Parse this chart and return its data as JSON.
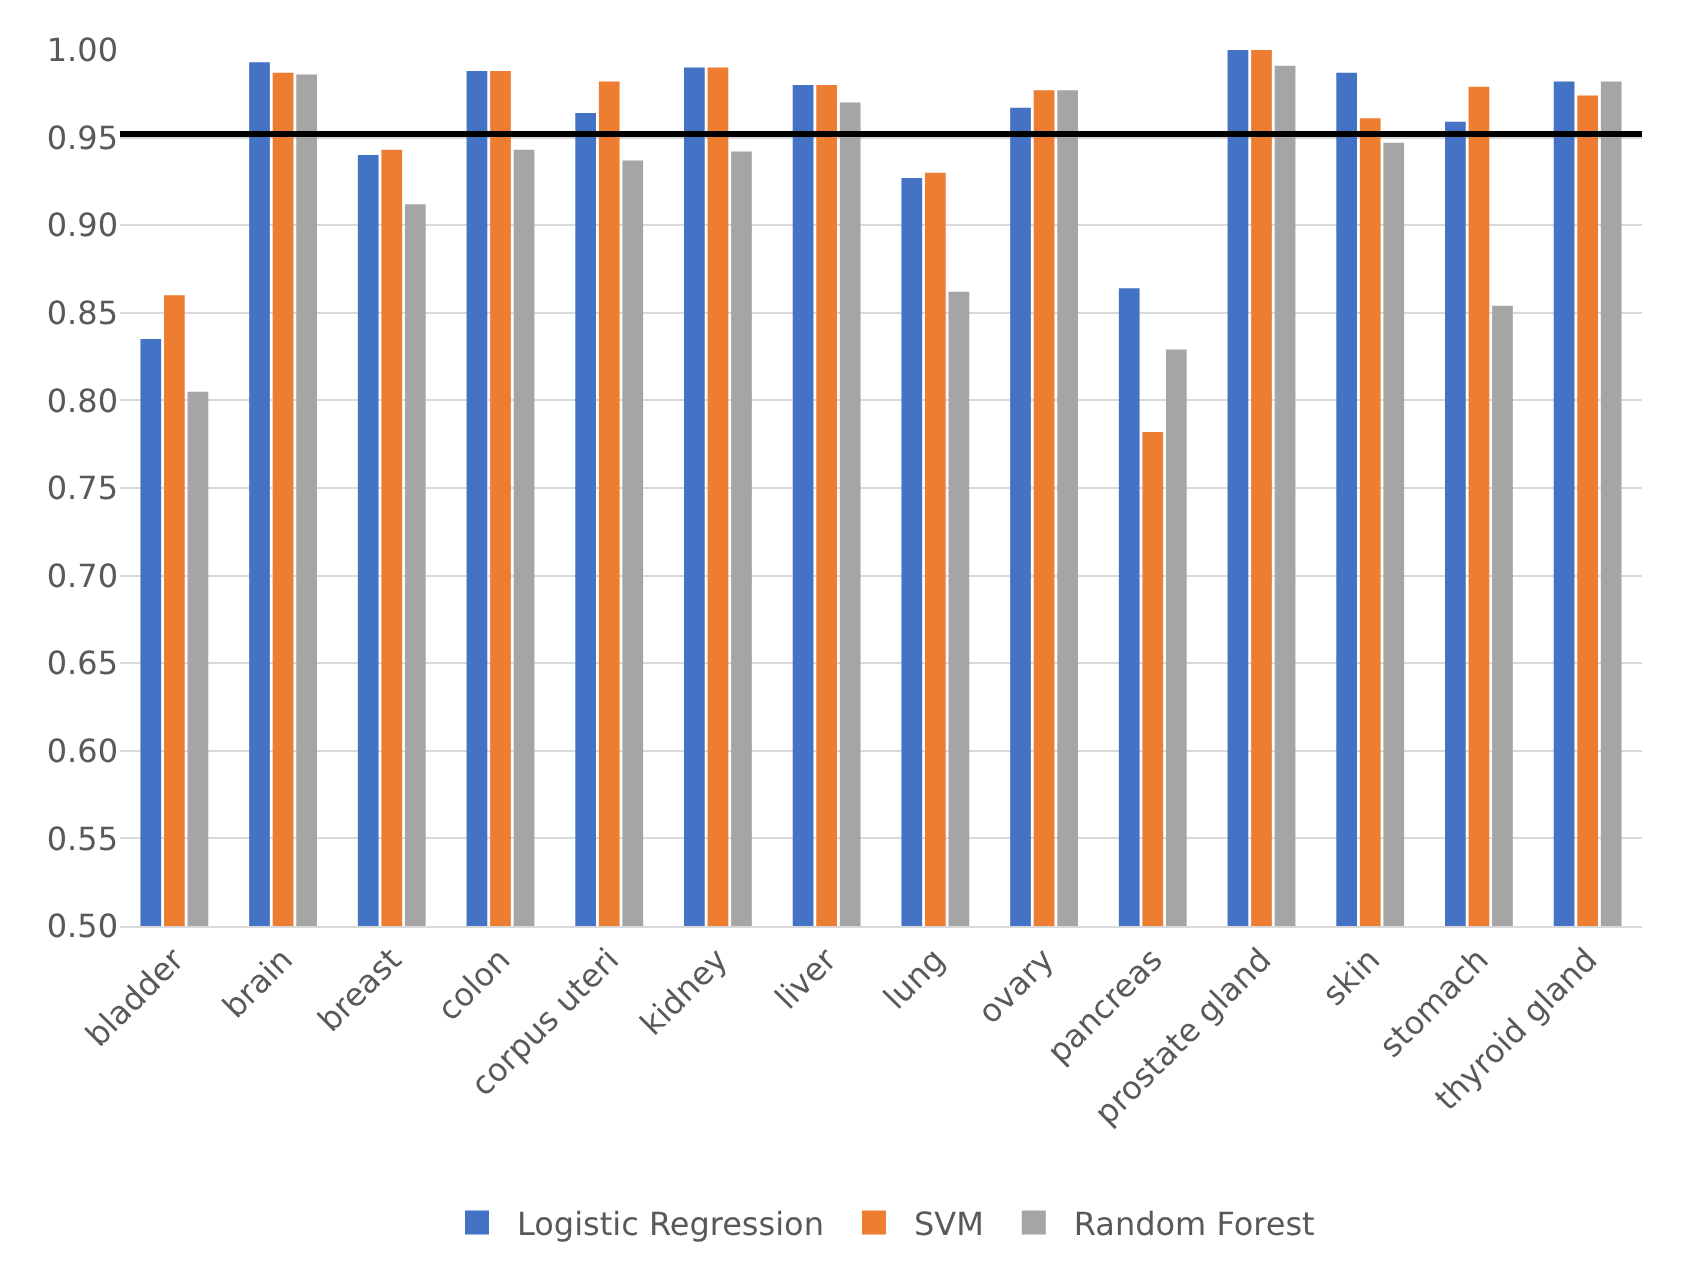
{
  "chart_data": {
    "type": "bar",
    "categories": [
      "bladder",
      "brain",
      "breast",
      "colon",
      "corpus uteri",
      "kidney",
      "liver",
      "lung",
      "ovary",
      "pancreas",
      "prostate gland",
      "skin",
      "stomach",
      "thyroid gland"
    ],
    "series": [
      {
        "name": "Logistic Regression",
        "color": "#4472c4",
        "values": [
          0.835,
          0.993,
          0.94,
          0.988,
          0.964,
          0.99,
          0.98,
          0.927,
          0.967,
          0.864,
          1.0,
          0.987,
          0.959,
          0.982
        ]
      },
      {
        "name": "SVM",
        "color": "#ed7d31",
        "values": [
          0.86,
          0.987,
          0.943,
          0.988,
          0.982,
          0.99,
          0.98,
          0.93,
          0.977,
          0.782,
          1.0,
          0.961,
          0.979,
          0.974
        ]
      },
      {
        "name": "Random Forest",
        "color": "#a5a5a5",
        "values": [
          0.805,
          0.986,
          0.912,
          0.943,
          0.937,
          0.942,
          0.97,
          0.862,
          0.977,
          0.829,
          0.991,
          0.947,
          0.854,
          0.982
        ]
      }
    ],
    "ylim": [
      0.5,
      1.0
    ],
    "yticks": [
      {
        "value": 0.5,
        "label": "0.50"
      },
      {
        "value": 0.55,
        "label": "0.55"
      },
      {
        "value": 0.6,
        "label": "0.60"
      },
      {
        "value": 0.65,
        "label": "0.65"
      },
      {
        "value": 0.7,
        "label": "0.70"
      },
      {
        "value": 0.75,
        "label": "0.75"
      },
      {
        "value": 0.8,
        "label": "0.80"
      },
      {
        "value": 0.85,
        "label": "0.85"
      },
      {
        "value": 0.9,
        "label": "0.90"
      },
      {
        "value": 0.95,
        "label": "0.95"
      },
      {
        "value": 1.0,
        "label": "1.00"
      }
    ],
    "ref_lines": [
      {
        "axis": "y",
        "value": 0.952,
        "color": "#000000"
      }
    ],
    "grid": "y",
    "legend": "bottom"
  }
}
